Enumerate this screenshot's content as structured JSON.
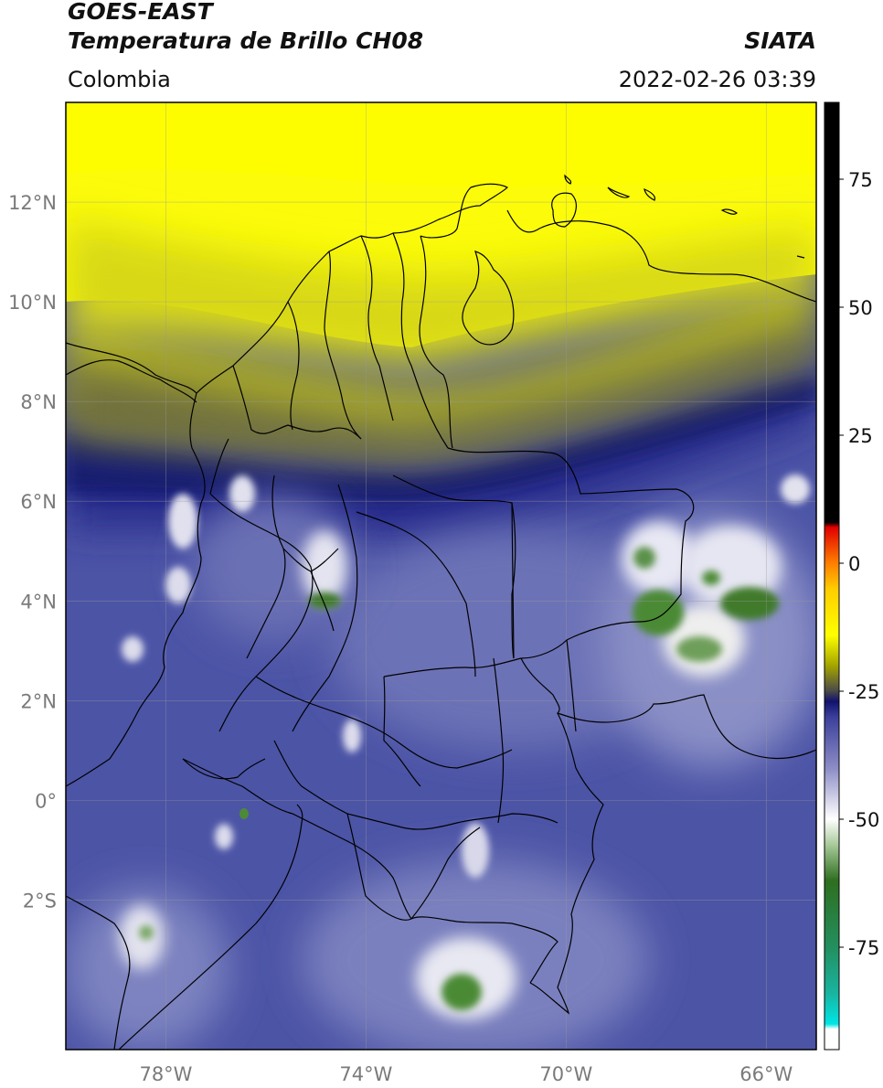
{
  "header": {
    "satellite": "GOES-EAST",
    "product": "Temperatura de Brillo CH08",
    "region": "Colombia",
    "organization": "SIATA",
    "timestamp": "2022-02-26 03:39"
  },
  "map": {
    "lon_range": [
      -80,
      -65
    ],
    "lat_range": [
      -5,
      14
    ],
    "lat_ticks": [
      {
        "value": 12,
        "label": "12°N"
      },
      {
        "value": 10,
        "label": "10°N"
      },
      {
        "value": 8,
        "label": "8°N"
      },
      {
        "value": 6,
        "label": "6°N"
      },
      {
        "value": 4,
        "label": "4°N"
      },
      {
        "value": 2,
        "label": "2°N"
      },
      {
        "value": 0,
        "label": "0°"
      },
      {
        "value": -2,
        "label": "2°S"
      }
    ],
    "lon_ticks": [
      {
        "value": -78,
        "label": "78°W"
      },
      {
        "value": -74,
        "label": "74°W"
      },
      {
        "value": -70,
        "label": "70°W"
      },
      {
        "value": -66,
        "label": "66°W"
      }
    ],
    "gridlines": true
  },
  "colorbar": {
    "range": [
      -95,
      90
    ],
    "ticks": [
      {
        "value": 75,
        "label": "75"
      },
      {
        "value": 50,
        "label": "50"
      },
      {
        "value": 25,
        "label": "25"
      },
      {
        "value": 0,
        "label": "0"
      },
      {
        "value": -25,
        "label": "-25"
      },
      {
        "value": -50,
        "label": "-50"
      },
      {
        "value": -75,
        "label": "-75"
      }
    ],
    "stops": [
      {
        "value": -95,
        "color": "#ffffff"
      },
      {
        "value": -91,
        "color": "#ffffff"
      },
      {
        "value": -90,
        "color": "#00e5e5"
      },
      {
        "value": -84,
        "color": "#19b4a0"
      },
      {
        "value": -75,
        "color": "#238f5f"
      },
      {
        "value": -62,
        "color": "#2e6e1f"
      },
      {
        "value": -55,
        "color": "#a8c99a"
      },
      {
        "value": -50,
        "color": "#ffffff"
      },
      {
        "value": -40,
        "color": "#8c8cc6"
      },
      {
        "value": -30,
        "color": "#3b3f9a"
      },
      {
        "value": -27,
        "color": "#12126e"
      },
      {
        "value": -25,
        "color": "#4a4a4a"
      },
      {
        "value": -20,
        "color": "#a4a400"
      },
      {
        "value": -14,
        "color": "#ffff00"
      },
      {
        "value": -5,
        "color": "#ffcc00"
      },
      {
        "value": 0,
        "color": "#ff7f00"
      },
      {
        "value": 7,
        "color": "#e00000"
      },
      {
        "value": 8,
        "color": "#000000"
      },
      {
        "value": 90,
        "color": "#000000"
      }
    ]
  }
}
